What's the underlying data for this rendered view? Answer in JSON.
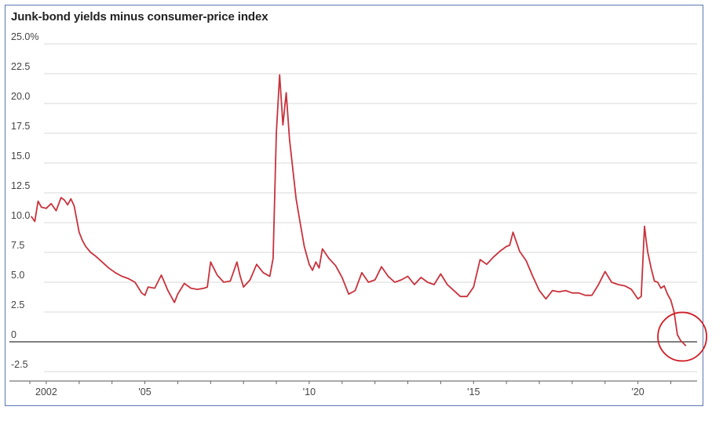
{
  "chart_data": {
    "type": "line",
    "title": "Junk-bond yields minus consumer-price index",
    "xlabel": "",
    "ylabel": "",
    "ylim": [
      -2.5,
      25
    ],
    "xlim": [
      2001.5,
      2021.8
    ],
    "y_ticks": [
      {
        "value": 25,
        "label": "25.0%"
      },
      {
        "value": 22.5,
        "label": "22.5"
      },
      {
        "value": 20,
        "label": "20.0"
      },
      {
        "value": 17.5,
        "label": "17.5"
      },
      {
        "value": 15,
        "label": "15.0"
      },
      {
        "value": 12.5,
        "label": "12.5"
      },
      {
        "value": 10,
        "label": "10.0"
      },
      {
        "value": 7.5,
        "label": "7.5"
      },
      {
        "value": 5,
        "label": "5.0"
      },
      {
        "value": 2.5,
        "label": "2.5"
      },
      {
        "value": 0,
        "label": "0"
      },
      {
        "value": -2.5,
        "label": "-2.5"
      }
    ],
    "x_ticks": [
      {
        "value": 2002,
        "label": "2002"
      },
      {
        "value": 2005,
        "label": "'05"
      },
      {
        "value": 2010,
        "label": "'10"
      },
      {
        "value": 2015,
        "label": "'15"
      },
      {
        "value": 2020,
        "label": "'20"
      }
    ],
    "x_minor_ticks": [
      2001.5,
      2003,
      2004,
      2006,
      2007,
      2008,
      2009,
      2011,
      2012,
      2013,
      2014,
      2016,
      2017,
      2018,
      2019,
      2021
    ],
    "grid": true,
    "line_color": "#c8323c",
    "annotation": {
      "type": "circle",
      "at": [
        2021.3,
        0.3
      ],
      "color": "#d01c24"
    },
    "series": [
      {
        "name": "",
        "x": [
          2001.55,
          2001.65,
          2001.75,
          2001.85,
          2002.0,
          2002.15,
          2002.3,
          2002.45,
          2002.55,
          2002.65,
          2002.75,
          2002.85,
          2003.0,
          2003.1,
          2003.2,
          2003.35,
          2003.5,
          2003.7,
          2003.9,
          2004.1,
          2004.3,
          2004.5,
          2004.7,
          2004.9,
          2005.0,
          2005.1,
          2005.3,
          2005.5,
          2005.7,
          2005.9,
          2006.0,
          2006.2,
          2006.4,
          2006.6,
          2006.8,
          2006.9,
          2007.0,
          2007.2,
          2007.4,
          2007.6,
          2007.8,
          2007.9,
          2008.0,
          2008.2,
          2008.4,
          2008.6,
          2008.8,
          2008.9,
          2009.0,
          2009.1,
          2009.2,
          2009.3,
          2009.4,
          2009.5,
          2009.6,
          2009.7,
          2009.85,
          2010.0,
          2010.1,
          2010.2,
          2010.3,
          2010.4,
          2010.6,
          2010.8,
          2011.0,
          2011.2,
          2011.4,
          2011.6,
          2011.8,
          2012.0,
          2012.2,
          2012.4,
          2012.6,
          2012.8,
          2013.0,
          2013.2,
          2013.4,
          2013.6,
          2013.8,
          2014.0,
          2014.2,
          2014.4,
          2014.6,
          2014.8,
          2015.0,
          2015.2,
          2015.4,
          2015.6,
          2015.8,
          2016.0,
          2016.1,
          2016.2,
          2016.4,
          2016.6,
          2016.8,
          2017.0,
          2017.2,
          2017.4,
          2017.6,
          2017.8,
          2018.0,
          2018.2,
          2018.4,
          2018.6,
          2018.8,
          2019.0,
          2019.2,
          2019.4,
          2019.6,
          2019.8,
          2020.0,
          2020.1,
          2020.2,
          2020.25,
          2020.3,
          2020.4,
          2020.5,
          2020.6,
          2020.7,
          2020.8,
          2020.9,
          2021.0,
          2021.1,
          2021.2,
          2021.3,
          2021.45
        ],
        "y": [
          10.5,
          10.1,
          11.8,
          11.3,
          11.2,
          11.6,
          11.0,
          12.1,
          11.9,
          11.5,
          12.0,
          11.4,
          9.2,
          8.5,
          8.0,
          7.5,
          7.2,
          6.7,
          6.2,
          5.8,
          5.5,
          5.3,
          5.0,
          4.1,
          3.9,
          4.6,
          4.5,
          5.6,
          4.3,
          3.3,
          4.0,
          4.9,
          4.5,
          4.4,
          4.5,
          4.6,
          6.7,
          5.6,
          5.0,
          5.1,
          6.7,
          5.5,
          4.6,
          5.2,
          6.5,
          5.8,
          5.5,
          7.0,
          17.5,
          22.4,
          18.2,
          20.9,
          17.0,
          14.5,
          12.0,
          10.4,
          8.0,
          6.5,
          6.0,
          6.7,
          6.2,
          7.8,
          7.0,
          6.4,
          5.4,
          4.0,
          4.3,
          5.8,
          5.0,
          5.2,
          6.3,
          5.5,
          5.0,
          5.2,
          5.5,
          4.8,
          5.4,
          5.0,
          4.8,
          5.7,
          4.8,
          4.3,
          3.8,
          3.8,
          4.6,
          6.9,
          6.5,
          7.1,
          7.6,
          8.0,
          8.1,
          9.2,
          7.6,
          6.8,
          5.5,
          4.3,
          3.6,
          4.3,
          4.2,
          4.3,
          4.1,
          4.1,
          3.9,
          3.9,
          4.8,
          5.9,
          5.0,
          4.8,
          4.7,
          4.4,
          3.6,
          3.8,
          9.7,
          8.5,
          7.5,
          6.2,
          5.1,
          5.0,
          4.5,
          4.7,
          4.0,
          3.5,
          2.5,
          0.6,
          0.1,
          -0.3
        ]
      }
    ]
  }
}
